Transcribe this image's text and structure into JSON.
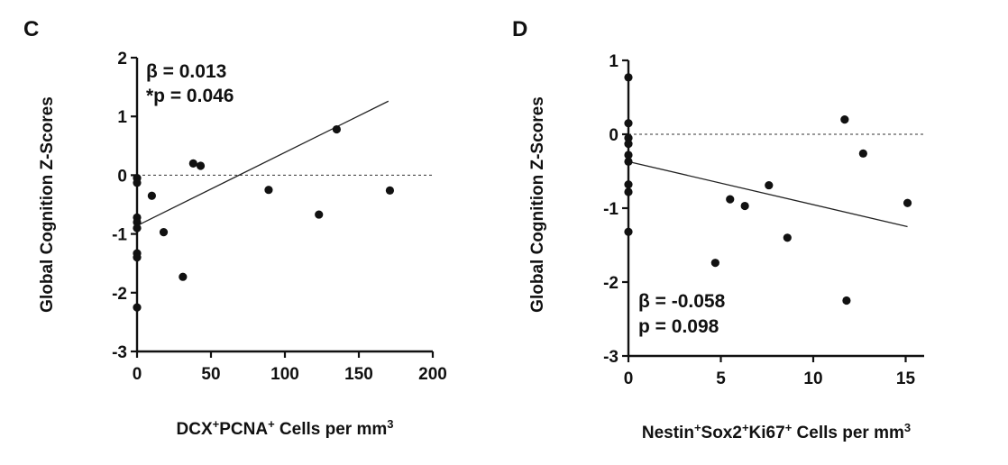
{
  "chart_data": [
    {
      "panel_label": "C",
      "type": "scatter",
      "xlabel": {
        "parts": [
          {
            "t": "DCX"
          },
          {
            "t": "+",
            "sup": true
          },
          {
            "t": "PCNA"
          },
          {
            "t": "+",
            "sup": true
          },
          {
            "t": " Cells per mm"
          },
          {
            "t": "3",
            "sup": true
          }
        ]
      },
      "ylabel": "Global Cognition Z-Scores",
      "xlim": [
        0,
        200
      ],
      "ylim": [
        -3,
        2
      ],
      "x_ticks": [
        0,
        50,
        100,
        150,
        200
      ],
      "y_ticks": [
        -3,
        -2,
        -1,
        0,
        1,
        2
      ],
      "reference_line_y": 0,
      "points": [
        {
          "x": 0,
          "y": -0.05
        },
        {
          "x": 0,
          "y": -0.13
        },
        {
          "x": 0,
          "y": -0.72
        },
        {
          "x": 0,
          "y": -0.8
        },
        {
          "x": 0,
          "y": -0.9
        },
        {
          "x": 0,
          "y": -1.33
        },
        {
          "x": 0,
          "y": -1.4
        },
        {
          "x": 0,
          "y": -2.25
        },
        {
          "x": 10,
          "y": -0.35
        },
        {
          "x": 18,
          "y": -0.97
        },
        {
          "x": 31,
          "y": -1.73
        },
        {
          "x": 38,
          "y": 0.2
        },
        {
          "x": 43,
          "y": 0.16
        },
        {
          "x": 89,
          "y": -0.25
        },
        {
          "x": 123,
          "y": -0.67
        },
        {
          "x": 135,
          "y": 0.78
        },
        {
          "x": 171,
          "y": -0.26
        }
      ],
      "fit_line": {
        "x": [
          0,
          170
        ],
        "y": [
          -0.86,
          1.26
        ]
      },
      "annotation_lines": [
        "β = 0.013",
        "*p = 0.046"
      ],
      "annotation_position": "top-left"
    },
    {
      "panel_label": "D",
      "type": "scatter",
      "xlabel": {
        "parts": [
          {
            "t": "Nestin"
          },
          {
            "t": "+",
            "sup": true
          },
          {
            "t": "Sox2"
          },
          {
            "t": "+",
            "sup": true
          },
          {
            "t": "Ki67"
          },
          {
            "t": "+",
            "sup": true
          },
          {
            "t": " Cells per mm"
          },
          {
            "t": "3",
            "sup": true
          }
        ]
      },
      "ylabel": "Global Cognition Z-Scores",
      "xlim": [
        0,
        16
      ],
      "ylim": [
        -3,
        1
      ],
      "x_ticks": [
        0,
        5,
        10,
        15
      ],
      "y_ticks": [
        -3,
        -2,
        -1,
        0,
        1
      ],
      "reference_line_y": 0,
      "points": [
        {
          "x": 0,
          "y": 0.77
        },
        {
          "x": 0,
          "y": 0.15
        },
        {
          "x": 0,
          "y": -0.05
        },
        {
          "x": 0,
          "y": -0.13
        },
        {
          "x": 0,
          "y": -0.28
        },
        {
          "x": 0,
          "y": -0.37
        },
        {
          "x": 0,
          "y": -0.68
        },
        {
          "x": 0,
          "y": -0.78
        },
        {
          "x": 0,
          "y": -1.32
        },
        {
          "x": 4.7,
          "y": -1.74
        },
        {
          "x": 5.5,
          "y": -0.88
        },
        {
          "x": 6.3,
          "y": -0.97
        },
        {
          "x": 7.6,
          "y": -0.69
        },
        {
          "x": 8.6,
          "y": -1.4
        },
        {
          "x": 11.7,
          "y": 0.2
        },
        {
          "x": 11.8,
          "y": -2.25
        },
        {
          "x": 12.7,
          "y": -0.26
        },
        {
          "x": 15.1,
          "y": -0.93
        }
      ],
      "fit_line": {
        "x": [
          0,
          15.1
        ],
        "y": [
          -0.37,
          -1.25
        ]
      },
      "annotation_lines": [
        "β = -0.058",
        "p = 0.098"
      ],
      "annotation_position": "bottom-left"
    }
  ]
}
